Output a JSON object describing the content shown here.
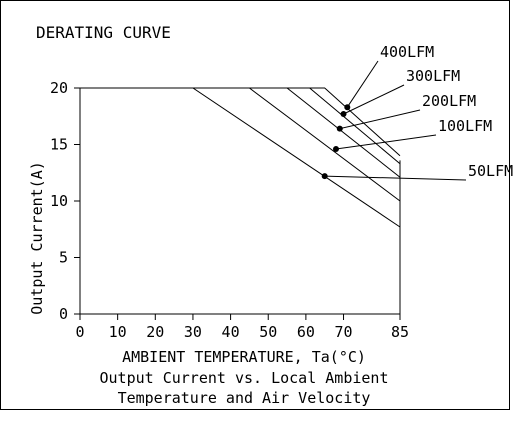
{
  "chart_data": {
    "type": "line",
    "title": "DERATING CURVE",
    "xlabel": "AMBIENT TEMPERATURE, Ta(°C)",
    "ylabel": "Output Current(A)",
    "caption": [
      "Output Current vs. Local Ambient",
      "Temperature and Air Velocity"
    ],
    "xlim": [
      0,
      85
    ],
    "ylim": [
      0,
      20
    ],
    "x_ticks": [
      0,
      10,
      20,
      30,
      40,
      50,
      60,
      70,
      85
    ],
    "y_ticks": [
      0,
      5,
      10,
      15,
      20
    ],
    "series": [
      {
        "name": "50LFM",
        "x": [
          0,
          30,
          85
        ],
        "y": [
          20,
          20,
          7.7
        ],
        "marker": [
          65,
          12.2
        ]
      },
      {
        "name": "100LFM",
        "x": [
          0,
          45,
          85
        ],
        "y": [
          20,
          20,
          10.0
        ],
        "marker": [
          68,
          14.6
        ]
      },
      {
        "name": "200LFM",
        "x": [
          0,
          55,
          85
        ],
        "y": [
          20,
          20,
          12.1
        ],
        "marker": [
          69,
          16.4
        ]
      },
      {
        "name": "300LFM",
        "x": [
          0,
          61,
          85
        ],
        "y": [
          20,
          20,
          13.3
        ],
        "marker": [
          70,
          17.7
        ]
      },
      {
        "name": "400LFM",
        "x": [
          0,
          65,
          85
        ],
        "y": [
          20,
          20,
          14.0
        ],
        "marker": [
          71,
          18.3
        ]
      }
    ],
    "grid": false,
    "legend": "callout labels top-right"
  }
}
